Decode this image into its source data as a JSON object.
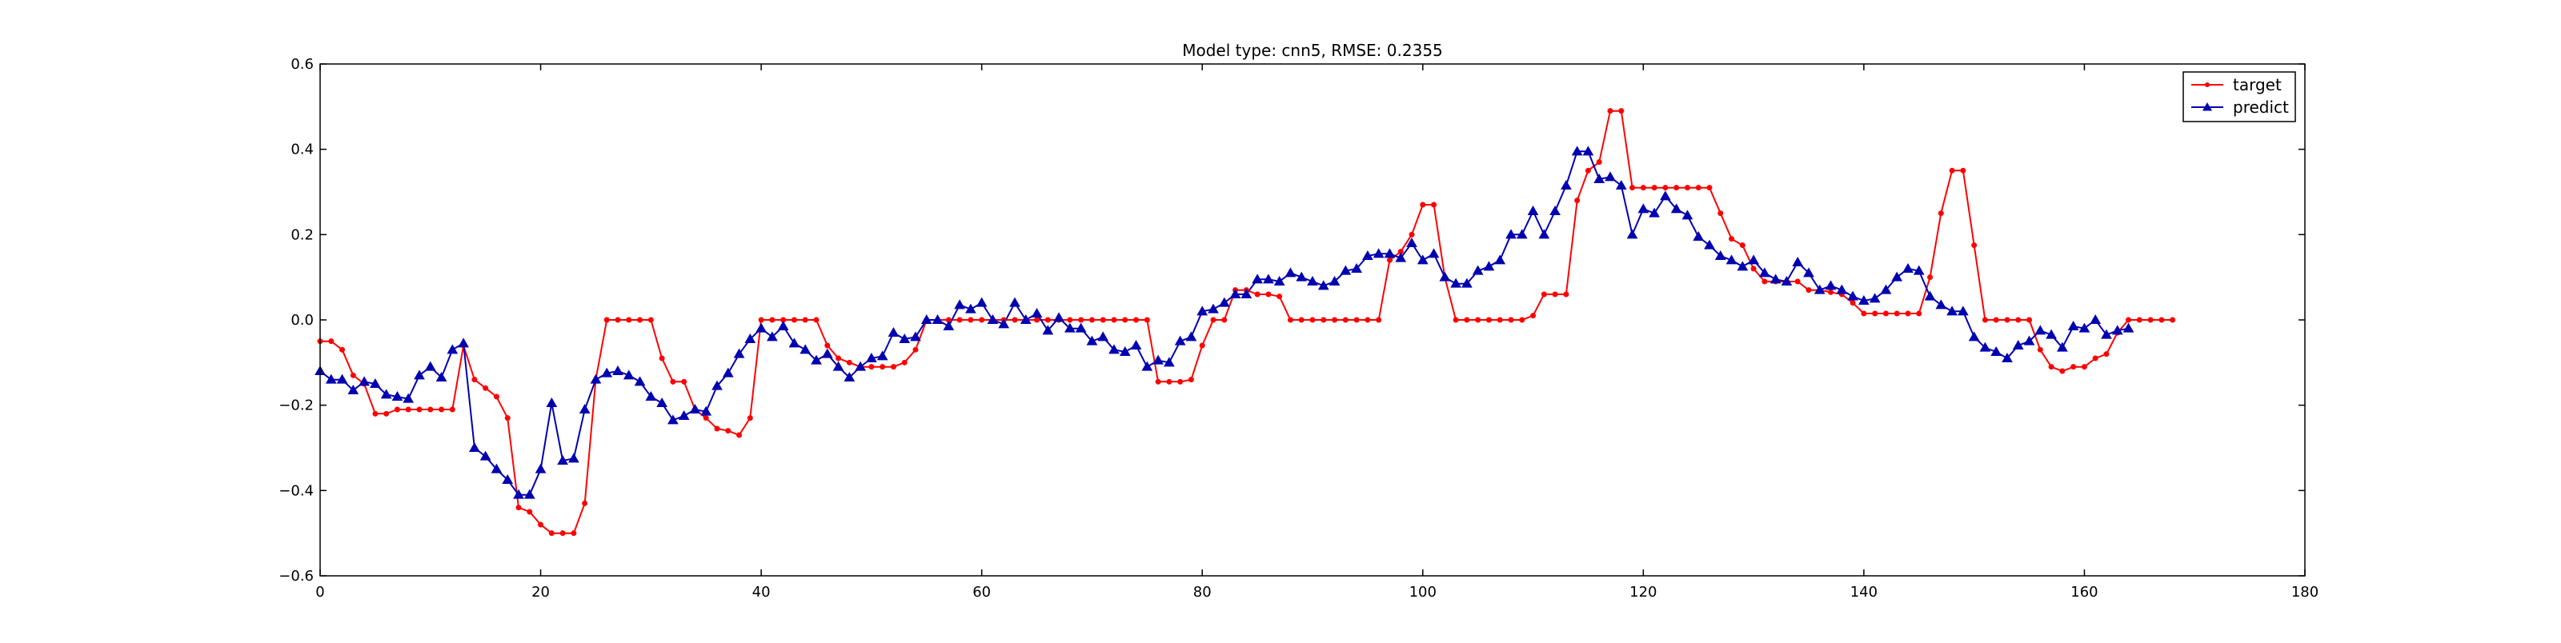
{
  "chart_data": {
    "type": "line",
    "title": "Model type: cnn5, RMSE: 0.2355",
    "xlabel": "",
    "ylabel": "",
    "xlim": [
      0,
      180
    ],
    "ylim": [
      -0.6,
      0.6
    ],
    "xticks": [
      0,
      20,
      40,
      60,
      80,
      100,
      120,
      140,
      160,
      180
    ],
    "yticks": [
      -0.6,
      -0.4,
      -0.2,
      0.0,
      0.2,
      0.4,
      0.6
    ],
    "xtick_labels": [
      "0",
      "20",
      "40",
      "60",
      "80",
      "100",
      "120",
      "140",
      "160",
      "180"
    ],
    "ytick_labels": [
      "−0.6",
      "−0.4",
      "−0.2",
      "0.0",
      "0.2",
      "0.4",
      "0.6"
    ],
    "grid": false,
    "legend_position": "top-right",
    "series": [
      {
        "name": "target",
        "color": "#ff0000",
        "marker": "dot",
        "values": [
          -0.05,
          -0.05,
          -0.07,
          -0.13,
          -0.15,
          -0.22,
          -0.22,
          -0.21,
          -0.21,
          -0.21,
          -0.21,
          -0.21,
          -0.21,
          -0.06,
          -0.14,
          -0.16,
          -0.18,
          -0.23,
          -0.44,
          -0.45,
          -0.48,
          -0.5,
          -0.5,
          -0.5,
          -0.43,
          -0.14,
          0,
          0,
          0,
          0,
          0,
          -0.09,
          -0.145,
          -0.145,
          -0.21,
          -0.23,
          -0.255,
          -0.26,
          -0.27,
          -0.23,
          0,
          0,
          0,
          0,
          0,
          0,
          -0.06,
          -0.09,
          -0.1,
          -0.11,
          -0.11,
          -0.11,
          -0.11,
          -0.1,
          -0.07,
          0,
          0,
          0,
          0,
          0,
          0,
          0,
          0,
          0,
          0,
          0,
          0,
          0,
          0,
          0,
          0,
          0,
          0,
          0,
          0,
          0,
          -0.145,
          -0.145,
          -0.145,
          -0.14,
          -0.06,
          0,
          0,
          0.07,
          0.07,
          0.06,
          0.06,
          0.055,
          0,
          0,
          0,
          0,
          0,
          0,
          0,
          0,
          0,
          0.14,
          0.16,
          0.2,
          0.27,
          0.27,
          0.1,
          0,
          0,
          0,
          0,
          0,
          0,
          0,
          0.01,
          0.06,
          0.06,
          0.06,
          0.28,
          0.35,
          0.37,
          0.49,
          0.49,
          0.31,
          0.31,
          0.31,
          0.31,
          0.31,
          0.31,
          0.31,
          0.31,
          0.25,
          0.19,
          0.175,
          0.12,
          0.09,
          0.09,
          0.09,
          0.09,
          0.07,
          0.07,
          0.065,
          0.06,
          0.04,
          0.015,
          0.015,
          0.015,
          0.015,
          0.015,
          0.015,
          0.1,
          0.25,
          0.35,
          0.35,
          0.175,
          0,
          0,
          0,
          0,
          0,
          -0.07,
          -0.11,
          -0.12,
          -0.11,
          -0.11,
          -0.09,
          -0.08,
          -0.03,
          0,
          0,
          0,
          0,
          0
        ]
      },
      {
        "name": "predict",
        "color": "#0000b0",
        "marker": "triangle",
        "values": [
          -0.12,
          -0.14,
          -0.14,
          -0.165,
          -0.145,
          -0.15,
          -0.175,
          -0.18,
          -0.185,
          -0.13,
          -0.11,
          -0.135,
          -0.07,
          -0.055,
          -0.3,
          -0.32,
          -0.35,
          -0.375,
          -0.41,
          -0.41,
          -0.35,
          -0.195,
          -0.33,
          -0.325,
          -0.21,
          -0.14,
          -0.125,
          -0.12,
          -0.13,
          -0.145,
          -0.18,
          -0.195,
          -0.235,
          -0.225,
          -0.21,
          -0.215,
          -0.155,
          -0.125,
          -0.08,
          -0.045,
          -0.02,
          -0.04,
          -0.015,
          -0.055,
          -0.07,
          -0.095,
          -0.08,
          -0.11,
          -0.135,
          -0.11,
          -0.09,
          -0.085,
          -0.03,
          -0.045,
          -0.04,
          0,
          0,
          -0.015,
          0.035,
          0.025,
          0.04,
          0,
          -0.01,
          0.04,
          0,
          0.015,
          -0.025,
          0.005,
          -0.02,
          -0.02,
          -0.05,
          -0.04,
          -0.07,
          -0.075,
          -0.06,
          -0.11,
          -0.095,
          -0.1,
          -0.05,
          -0.04,
          0.02,
          0.025,
          0.04,
          0.06,
          0.06,
          0.095,
          0.095,
          0.09,
          0.11,
          0.1,
          0.09,
          0.08,
          0.09,
          0.115,
          0.12,
          0.15,
          0.155,
          0.155,
          0.145,
          0.18,
          0.14,
          0.155,
          0.1,
          0.085,
          0.085,
          0.115,
          0.125,
          0.14,
          0.2,
          0.2,
          0.255,
          0.2,
          0.255,
          0.315,
          0.395,
          0.395,
          0.33,
          0.335,
          0.315,
          0.2,
          0.26,
          0.25,
          0.29,
          0.26,
          0.245,
          0.195,
          0.175,
          0.15,
          0.14,
          0.125,
          0.14,
          0.11,
          0.095,
          0.09,
          0.135,
          0.11,
          0.07,
          0.08,
          0.07,
          0.055,
          0.045,
          0.05,
          0.07,
          0.1,
          0.12,
          0.115,
          0.055,
          0.035,
          0.02,
          0.02,
          -0.04,
          -0.065,
          -0.075,
          -0.09,
          -0.06,
          -0.05,
          -0.025,
          -0.035,
          -0.065,
          -0.015,
          -0.02,
          0,
          -0.035,
          -0.025,
          -0.02
        ]
      }
    ]
  }
}
